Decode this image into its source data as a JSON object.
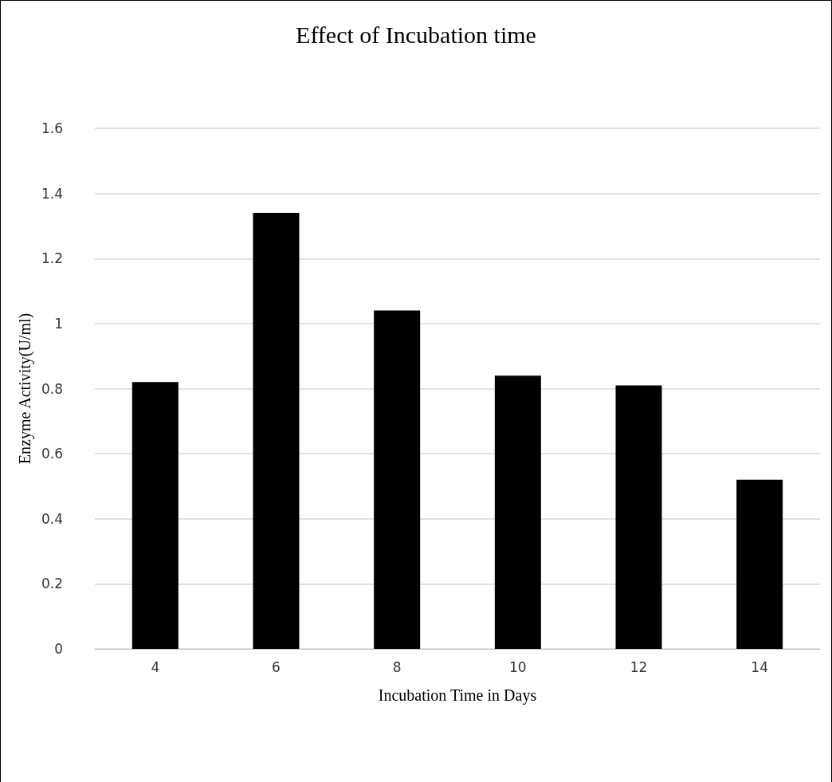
{
  "chart_data": {
    "type": "bar",
    "title": "Effect of Incubation time",
    "xlabel": "Incubation Time in Days",
    "ylabel": "Enzyme Activity(U/ml)",
    "categories": [
      "4",
      "6",
      "8",
      "10",
      "12",
      "14"
    ],
    "values": [
      0.82,
      1.34,
      1.04,
      0.84,
      0.81,
      0.52
    ],
    "color": "#000000",
    "ylim": [
      0,
      1.6
    ],
    "yticks": [
      0,
      0.2,
      0.4,
      0.6,
      0.8,
      1,
      1.2,
      1.4,
      1.6
    ],
    "grid": "y"
  }
}
